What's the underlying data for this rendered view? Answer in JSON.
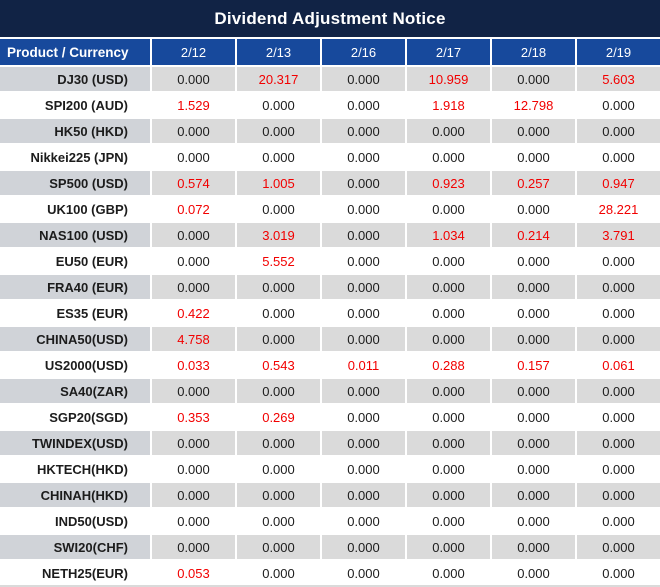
{
  "title": "Dividend Adjustment Notice",
  "table": {
    "product_header": "Product / Currency",
    "date_columns": [
      "2/12",
      "2/13",
      "2/16",
      "2/17",
      "2/18",
      "2/19"
    ],
    "rows": [
      {
        "product": "DJ30 (USD)",
        "values": [
          "0.000",
          "20.317",
          "0.000",
          "10.959",
          "0.000",
          "5.603"
        ]
      },
      {
        "product": "SPI200 (AUD)",
        "values": [
          "1.529",
          "0.000",
          "0.000",
          "1.918",
          "12.798",
          "0.000"
        ]
      },
      {
        "product": "HK50 (HKD)",
        "values": [
          "0.000",
          "0.000",
          "0.000",
          "0.000",
          "0.000",
          "0.000"
        ]
      },
      {
        "product": "Nikkei225 (JPN)",
        "values": [
          "0.000",
          "0.000",
          "0.000",
          "0.000",
          "0.000",
          "0.000"
        ]
      },
      {
        "product": "SP500 (USD)",
        "values": [
          "0.574",
          "1.005",
          "0.000",
          "0.923",
          "0.257",
          "0.947"
        ]
      },
      {
        "product": "UK100 (GBP)",
        "values": [
          "0.072",
          "0.000",
          "0.000",
          "0.000",
          "0.000",
          "28.221"
        ]
      },
      {
        "product": "NAS100 (USD)",
        "values": [
          "0.000",
          "3.019",
          "0.000",
          "1.034",
          "0.214",
          "3.791"
        ]
      },
      {
        "product": "EU50 (EUR)",
        "values": [
          "0.000",
          "5.552",
          "0.000",
          "0.000",
          "0.000",
          "0.000"
        ]
      },
      {
        "product": "FRA40 (EUR)",
        "values": [
          "0.000",
          "0.000",
          "0.000",
          "0.000",
          "0.000",
          "0.000"
        ]
      },
      {
        "product": "ES35 (EUR)",
        "values": [
          "0.422",
          "0.000",
          "0.000",
          "0.000",
          "0.000",
          "0.000"
        ]
      },
      {
        "product": "CHINA50(USD)",
        "values": [
          "4.758",
          "0.000",
          "0.000",
          "0.000",
          "0.000",
          "0.000"
        ]
      },
      {
        "product": "US2000(USD)",
        "values": [
          "0.033",
          "0.543",
          "0.011",
          "0.288",
          "0.157",
          "0.061"
        ]
      },
      {
        "product": "SA40(ZAR)",
        "values": [
          "0.000",
          "0.000",
          "0.000",
          "0.000",
          "0.000",
          "0.000"
        ]
      },
      {
        "product": "SGP20(SGD)",
        "values": [
          "0.353",
          "0.269",
          "0.000",
          "0.000",
          "0.000",
          "0.000"
        ]
      },
      {
        "product": "TWINDEX(USD)",
        "values": [
          "0.000",
          "0.000",
          "0.000",
          "0.000",
          "0.000",
          "0.000"
        ]
      },
      {
        "product": "HKTECH(HKD)",
        "values": [
          "0.000",
          "0.000",
          "0.000",
          "0.000",
          "0.000",
          "0.000"
        ]
      },
      {
        "product": "CHINAH(HKD)",
        "values": [
          "0.000",
          "0.000",
          "0.000",
          "0.000",
          "0.000",
          "0.000"
        ]
      },
      {
        "product": "IND50(USD)",
        "values": [
          "0.000",
          "0.000",
          "0.000",
          "0.000",
          "0.000",
          "0.000"
        ]
      },
      {
        "product": "SWI20(CHF)",
        "values": [
          "0.000",
          "0.000",
          "0.000",
          "0.000",
          "0.000",
          "0.000"
        ]
      },
      {
        "product": "NETH25(EUR)",
        "values": [
          "0.053",
          "0.000",
          "0.000",
          "0.000",
          "0.000",
          "0.000"
        ]
      }
    ]
  },
  "colors": {
    "title_bg": "#112345",
    "header_bg": "#17499c",
    "row_alt_bg": "#dadada",
    "product_alt_bg": "#d0d3d8",
    "value_red": "#f20000",
    "text": "#1c1c1c"
  }
}
